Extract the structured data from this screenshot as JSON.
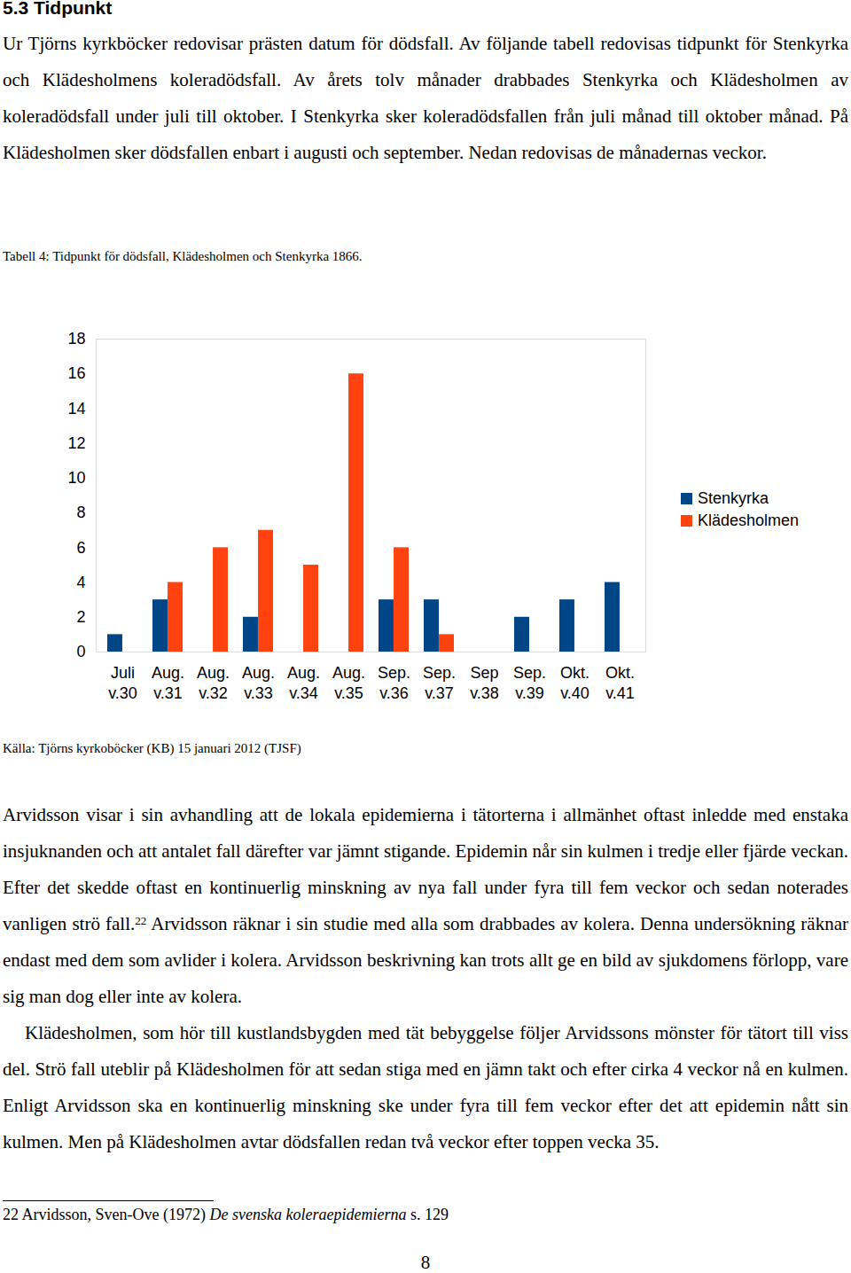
{
  "heading": "5.3 Tidpunkt",
  "paragraphs_before": [
    "Ur Tjörns kyrkböcker redovisar prästen datum för dödsfall. Av följande tabell redovisas tidpunkt för Stenkyrka och Klädesholmens koleradödsfall. Av årets tolv månader drabbades Stenkyrka och Klädesholmen av koleradödsfall under juli till oktober. I Stenkyrka sker koleradödsfallen från juli månad till oktober månad. På Klädesholmen sker dödsfallen enbart i augusti och september. Nedan redovisas de månadernas veckor."
  ],
  "chart_data": {
    "type": "bar",
    "title": "Tabell 4: Tidpunkt för dödsfall, Klädesholmen och Stenkyrka 1866.",
    "categories": [
      "Juli\nv.30",
      "Aug.\nv.31",
      "Aug.\nv.32",
      "Aug.\nv.33",
      "Aug.\nv.34",
      "Aug.\nv.35",
      "Sep.\nv.36",
      "Sep.\nv.37",
      "Sep\nv.38",
      "Sep.\nv.39",
      "Okt.\nv.40",
      "Okt.\nv.41"
    ],
    "series": [
      {
        "name": "Stenkyrka",
        "color": "#004586",
        "values": [
          1,
          3,
          0,
          2,
          0,
          0,
          3,
          3,
          0,
          2,
          3,
          4
        ]
      },
      {
        "name": "Klädesholmen",
        "color": "#ff420e",
        "values": [
          0,
          4,
          6,
          7,
          5,
          16,
          6,
          1,
          0,
          0,
          0,
          0
        ]
      }
    ],
    "ylim": [
      0,
      18
    ],
    "yticks": [
      0,
      2,
      4,
      6,
      8,
      10,
      12,
      14,
      16,
      18
    ],
    "grid": false,
    "legend": "right"
  },
  "source": "Källa: Tjörns kyrkoböcker (KB) 15 januari 2012 (TJSF)",
  "paragraphs_after": [
    {
      "text": "Arvidsson visar i sin avhandling att de lokala epidemierna i tätorterna i allmänhet oftast inledde med enstaka insjuknanden och att antalet fall därefter var jämnt stigande. Epidemin når sin kulmen i tredje eller fjärde veckan. Efter det skedde oftast en kontinuerlig minskning av nya fall under fyra till fem veckor och sedan noterades vanligen strö fall.",
      "footnote_ref": "22",
      "text_after": "Arvidsson räknar i sin studie med alla som drabbades av kolera. Denna undersökning räknar endast med dem som avlider i kolera. Arvidsson beskrivning kan trots allt ge en bild av sjukdomens förlopp, vare sig man dog eller inte av kolera."
    },
    {
      "text": "Klädesholmen, som hör till kustlandsbygden med tät bebyggelse följer Arvidssons mönster för tätort till viss del. Strö fall uteblir på Klädesholmen för att sedan stiga med en jämn takt och efter cirka 4 veckor nå en kulmen. Enligt Arvidsson ska en kontinuerlig minskning ske under fyra till fem veckor efter det att epidemin nått sin kulmen. Men på Klädesholmen avtar dödsfallen redan två veckor efter toppen vecka 35."
    }
  ],
  "footnote": {
    "number": "22",
    "author": "Arvidsson, Sven-Ove (1972)",
    "title": "De svenska koleraepidemierna",
    "pages": "s. 129"
  },
  "page_number": 8
}
